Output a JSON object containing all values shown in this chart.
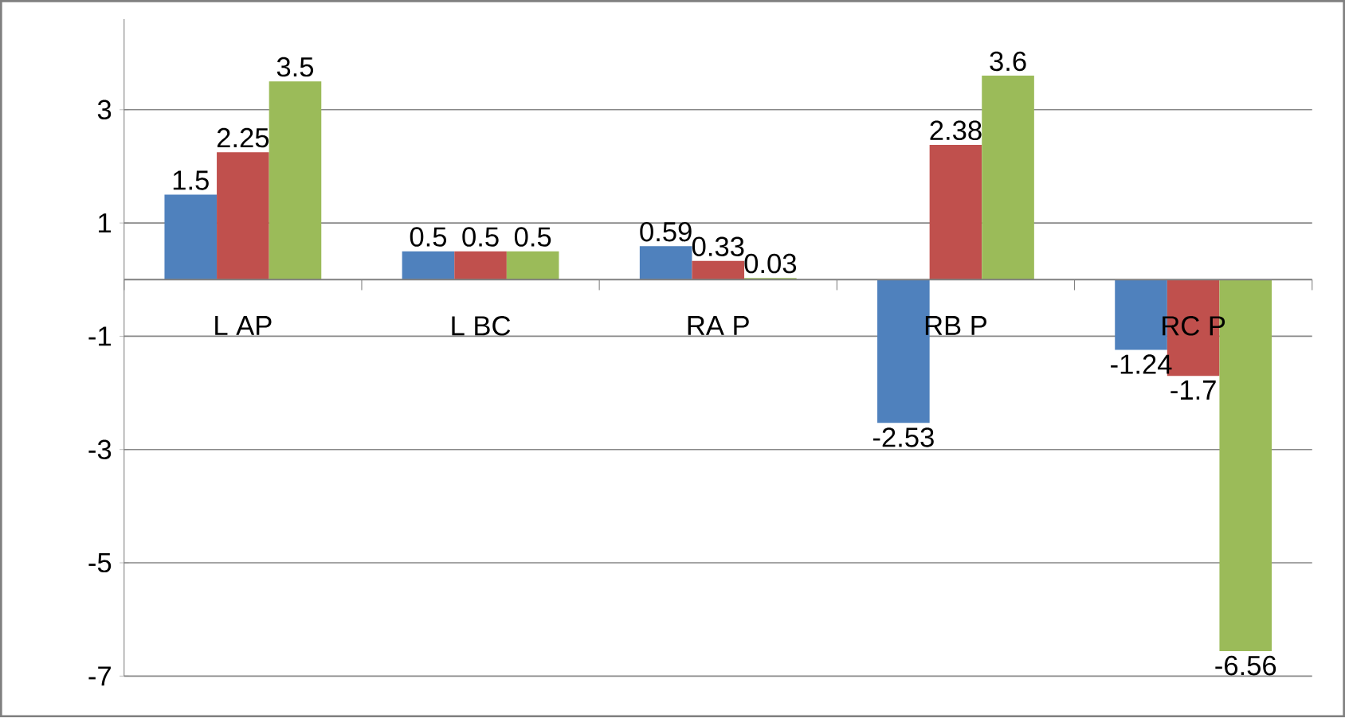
{
  "chart_data": {
    "type": "bar",
    "categories": [
      "L AP",
      "L BC",
      "RA P",
      "RB P",
      "RC P"
    ],
    "series": [
      {
        "color": "#4f81bd",
        "values": [
          1.5,
          0.5,
          0.59,
          -2.53,
          -1.24
        ]
      },
      {
        "color": "#c0504d",
        "values": [
          2.25,
          0.5,
          0.33,
          2.38,
          -1.7
        ]
      },
      {
        "color": "#9bbb59",
        "values": [
          3.5,
          0.5,
          0.03,
          3.6,
          -6.56
        ]
      }
    ],
    "ylim": [
      -7,
      4.6
    ],
    "yticks": [
      -7,
      -5,
      -3,
      -1,
      1,
      3
    ],
    "grid": "y",
    "data_labels": true
  }
}
